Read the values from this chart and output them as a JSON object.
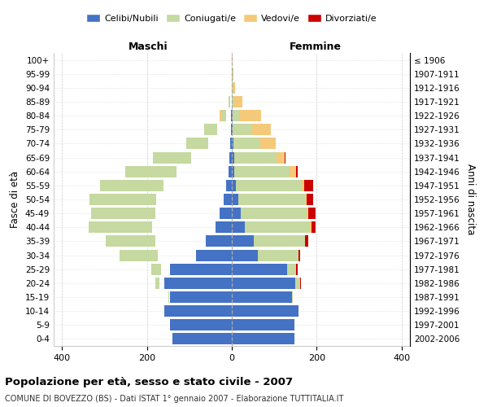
{
  "age_groups": [
    "0-4",
    "5-9",
    "10-14",
    "15-19",
    "20-24",
    "25-29",
    "30-34",
    "35-39",
    "40-44",
    "45-49",
    "50-54",
    "55-59",
    "60-64",
    "65-69",
    "70-74",
    "75-79",
    "80-84",
    "85-89",
    "90-94",
    "95-99",
    "100+"
  ],
  "birth_years": [
    "2002-2006",
    "1997-2001",
    "1992-1996",
    "1987-1991",
    "1982-1986",
    "1977-1981",
    "1972-1976",
    "1967-1971",
    "1962-1966",
    "1957-1961",
    "1952-1956",
    "1947-1951",
    "1942-1946",
    "1937-1941",
    "1932-1936",
    "1927-1931",
    "1922-1926",
    "1917-1921",
    "1912-1916",
    "1907-1911",
    "≤ 1906"
  ],
  "maschi_celibe": [
    140,
    145,
    160,
    145,
    160,
    145,
    85,
    62,
    38,
    28,
    20,
    14,
    8,
    6,
    4,
    2,
    1,
    0,
    0,
    0,
    0
  ],
  "maschi_coniugato": [
    0,
    0,
    0,
    2,
    10,
    22,
    90,
    118,
    150,
    152,
    158,
    148,
    122,
    90,
    52,
    32,
    12,
    4,
    1,
    0,
    0
  ],
  "maschi_vedovo": [
    0,
    0,
    0,
    0,
    0,
    0,
    0,
    1,
    1,
    2,
    2,
    2,
    4,
    6,
    8,
    10,
    8,
    2,
    0,
    0,
    0
  ],
  "maschi_divorziato": [
    0,
    0,
    0,
    0,
    1,
    2,
    5,
    12,
    10,
    14,
    12,
    20,
    5,
    2,
    1,
    0,
    0,
    0,
    0,
    0,
    0
  ],
  "femmine_celibe": [
    148,
    148,
    158,
    142,
    150,
    130,
    62,
    52,
    30,
    22,
    15,
    10,
    6,
    5,
    3,
    2,
    1,
    0,
    0,
    0,
    0
  ],
  "femmine_coniugato": [
    0,
    0,
    0,
    2,
    12,
    22,
    95,
    120,
    155,
    155,
    158,
    155,
    130,
    100,
    65,
    45,
    18,
    5,
    2,
    1,
    0
  ],
  "femmine_vedovo": [
    0,
    0,
    0,
    0,
    0,
    0,
    0,
    1,
    2,
    3,
    4,
    6,
    15,
    20,
    35,
    45,
    50,
    20,
    5,
    2,
    1
  ],
  "femmine_divorziato": [
    0,
    0,
    0,
    0,
    1,
    3,
    5,
    8,
    10,
    18,
    15,
    20,
    5,
    2,
    1,
    1,
    0,
    0,
    0,
    0,
    0
  ],
  "colors": {
    "celibe": "#4472C4",
    "coniugato": "#C5D9A0",
    "vedovo": "#F5C97A",
    "divorziato": "#CC0000"
  },
  "title": "Popolazione per età, sesso e stato civile - 2007",
  "subtitle": "COMUNE DI BOVEZZO (BS) - Dati ISTAT 1° gennaio 2007 - Elaborazione TUTTITALIA.IT",
  "xlabel_left": "Maschi",
  "xlabel_right": "Femmine",
  "ylabel_left": "Fasce di età",
  "ylabel_right": "Anni di nascita",
  "legend_labels": [
    "Celibi/Nubili",
    "Coniugati/e",
    "Vedovi/e",
    "Divorziati/e"
  ],
  "xlim": 420,
  "background_color": "#ffffff",
  "grid_color": "#cccccc"
}
